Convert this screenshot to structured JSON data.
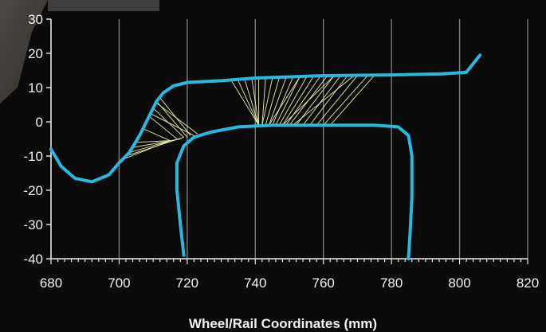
{
  "chart_data": {
    "type": "line",
    "title": "",
    "xlabel": "Wheel/Rail Coordinates (mm)",
    "ylabel": "",
    "xlim": [
      680,
      820
    ],
    "ylim": [
      -40,
      30
    ],
    "x_ticks": [
      680,
      700,
      720,
      740,
      760,
      780,
      800,
      820
    ],
    "y_ticks": [
      30,
      20,
      10,
      0,
      -10,
      -20,
      -30,
      -40
    ],
    "grid": "vertical",
    "colors": {
      "profile": "#29b8e0",
      "contact_lines": "#eef0a8",
      "grid": "#7d7d7d",
      "axis": "#e6e6e6",
      "background": "#0b0b0c"
    },
    "series": [
      {
        "points": [
          [
            680,
            -8
          ],
          [
            683,
            -13
          ],
          [
            687,
            -16.5
          ],
          [
            692,
            -17.5
          ],
          [
            697,
            -15.5
          ],
          [
            700,
            -12
          ],
          [
            703,
            -9
          ],
          [
            706,
            -4
          ],
          [
            709,
            2
          ],
          [
            711,
            6
          ],
          [
            713,
            8.5
          ],
          [
            716,
            10.5
          ],
          [
            720,
            11.5
          ],
          [
            730,
            12
          ],
          [
            740,
            12.8
          ],
          [
            760,
            13.5
          ],
          [
            780,
            13.7
          ],
          [
            795,
            14
          ],
          [
            802,
            14.5
          ],
          [
            806,
            19.5
          ]
        ]
      },
      {
        "points": [
          [
            719,
            -39
          ],
          [
            718,
            -30
          ],
          [
            717,
            -20
          ],
          [
            717,
            -12
          ],
          [
            719,
            -7
          ],
          [
            722,
            -4.5
          ],
          [
            727,
            -3
          ],
          [
            735,
            -1.5
          ],
          [
            745,
            -1
          ],
          [
            760,
            -1
          ],
          [
            775,
            -1
          ],
          [
            782,
            -1.5
          ],
          [
            785,
            -4
          ],
          [
            786,
            -10
          ],
          [
            786,
            -22
          ],
          [
            785.5,
            -32
          ],
          [
            785,
            -40
          ]
        ]
      }
    ],
    "contact_lines": [
      {
        "from": [
          715,
          -5.5
        ],
        "to": [
          701,
          -11
        ]
      },
      {
        "from": [
          715,
          -5.5
        ],
        "to": [
          703,
          -9
        ]
      },
      {
        "from": [
          715,
          -5.5
        ],
        "to": [
          705,
          -6
        ]
      },
      {
        "from": [
          715,
          -5.5
        ],
        "to": [
          707,
          -2
        ]
      },
      {
        "from": [
          717,
          -5
        ],
        "to": [
          709,
          1.5
        ]
      },
      {
        "from": [
          719,
          -4.5
        ],
        "to": [
          710,
          4
        ]
      },
      {
        "from": [
          720,
          -4.5
        ],
        "to": [
          711,
          6
        ]
      },
      {
        "from": [
          721,
          -4
        ],
        "to": [
          712,
          7
        ]
      },
      {
        "from": [
          719,
          -4.5
        ],
        "to": [
          702,
          -10
        ]
      },
      {
        "from": [
          718,
          -5
        ],
        "to": [
          704,
          -7.5
        ]
      },
      {
        "from": [
          722,
          -4
        ],
        "to": [
          709,
          2.5
        ]
      },
      {
        "from": [
          723,
          -3.5
        ],
        "to": [
          711,
          5.5
        ]
      },
      {
        "from": [
          741,
          -1
        ],
        "to": [
          733,
          12
        ]
      },
      {
        "from": [
          741,
          -1
        ],
        "to": [
          735,
          12
        ]
      },
      {
        "from": [
          741,
          -1
        ],
        "to": [
          737,
          12
        ]
      },
      {
        "from": [
          741,
          -1
        ],
        "to": [
          739,
          12.5
        ]
      },
      {
        "from": [
          741,
          -1
        ],
        "to": [
          741,
          12.5
        ]
      },
      {
        "from": [
          742,
          -1
        ],
        "to": [
          743,
          12.5
        ]
      },
      {
        "from": [
          742,
          -1
        ],
        "to": [
          745,
          12.6
        ]
      },
      {
        "from": [
          743,
          -1
        ],
        "to": [
          747,
          12.7
        ]
      },
      {
        "from": [
          744,
          -1
        ],
        "to": [
          749,
          12.8
        ]
      },
      {
        "from": [
          745,
          -1
        ],
        "to": [
          751,
          12.9
        ]
      },
      {
        "from": [
          746,
          -1
        ],
        "to": [
          753,
          13
        ]
      },
      {
        "from": [
          747,
          -1
        ],
        "to": [
          755,
          13
        ]
      },
      {
        "from": [
          748,
          -1
        ],
        "to": [
          757,
          13.1
        ]
      },
      {
        "from": [
          749,
          -1
        ],
        "to": [
          759,
          13.2
        ]
      },
      {
        "from": [
          750,
          -1
        ],
        "to": [
          761,
          13.2
        ]
      },
      {
        "from": [
          752,
          -1
        ],
        "to": [
          763,
          13.3
        ]
      },
      {
        "from": [
          754,
          -1
        ],
        "to": [
          765,
          13.4
        ]
      },
      {
        "from": [
          756,
          -1
        ],
        "to": [
          767,
          13.4
        ]
      },
      {
        "from": [
          758,
          -1
        ],
        "to": [
          770,
          13.5
        ]
      },
      {
        "from": [
          760,
          -1
        ],
        "to": [
          773,
          13.5
        ]
      },
      {
        "from": [
          762,
          -1
        ],
        "to": [
          775,
          13.6
        ]
      },
      {
        "from": [
          744,
          -1
        ],
        "to": [
          753,
          13
        ]
      },
      {
        "from": [
          748,
          -1
        ],
        "to": [
          763,
          13.3
        ]
      },
      {
        "from": [
          751,
          -1
        ],
        "to": [
          769,
          13.5
        ]
      }
    ]
  }
}
